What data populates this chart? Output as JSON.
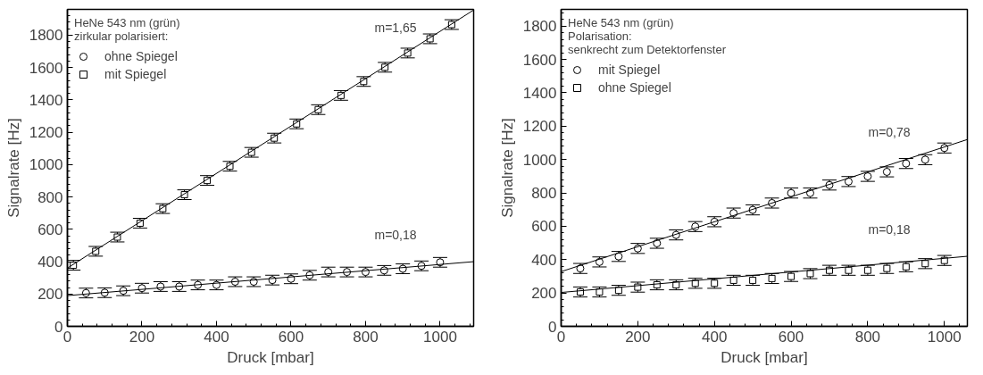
{
  "chart_data": [
    {
      "type": "scatter",
      "xlabel": "Druck [mbar]",
      "ylabel": "Signalrate [Hz]",
      "legend_title": "HeNe 543 nm (grün)\nzirkular polarisiert:",
      "legend": "top left",
      "grid": false,
      "xlim": [
        0,
        1090
      ],
      "ylim": [
        0,
        1960
      ],
      "xticks": [
        0,
        200,
        400,
        600,
        800,
        1000
      ],
      "yticks": [
        0,
        200,
        400,
        600,
        800,
        1000,
        1200,
        1400,
        1600,
        1800
      ],
      "series": [
        {
          "name": "ohne Spiegel",
          "color": "#000000",
          "marker": "circle",
          "x": [
            50,
            100,
            150,
            200,
            250,
            300,
            350,
            400,
            450,
            500,
            550,
            600,
            650,
            700,
            750,
            800,
            850,
            900,
            950,
            1000
          ],
          "values": [
            206,
            208,
            220,
            236,
            246,
            246,
            256,
            256,
            276,
            276,
            286,
            294,
            316,
            336,
            336,
            336,
            346,
            356,
            374,
            396
          ],
          "errors": [
            30,
            30,
            30,
            30,
            30,
            30,
            30,
            30,
            30,
            30,
            30,
            30,
            30,
            30,
            30,
            30,
            30,
            30,
            30,
            30
          ]
        },
        {
          "name": "mit Spiegel",
          "color": "#000000",
          "marker": "square",
          "x": [
            16,
            76,
            134,
            195,
            256,
            314,
            375,
            436,
            494,
            555,
            615,
            673,
            734,
            795,
            852,
            913,
            973,
            1031
          ],
          "values": [
            378,
            464,
            552,
            638,
            728,
            814,
            902,
            990,
            1076,
            1164,
            1252,
            1340,
            1428,
            1514,
            1602,
            1690,
            1778,
            1866
          ],
          "errors": [
            30,
            30,
            30,
            30,
            30,
            30,
            30,
            30,
            30,
            30,
            30,
            30,
            30,
            30,
            30,
            30,
            30,
            30
          ]
        },
        {
          "type": "line",
          "color": "#000000",
          "x": [
            0,
            1090
          ],
          "values": [
            360,
            1956
          ]
        },
        {
          "type": "line",
          "color": "#000000",
          "x": [
            0,
            1090
          ],
          "values": [
            190,
            400
          ]
        }
      ],
      "annotations": [
        "m=1,65",
        "m=0,18"
      ]
    },
    {
      "type": "scatter",
      "xlabel": "Druck [mbar]",
      "ylabel": "Signalrate [Hz]",
      "legend_title": "HeNe 543 nm (grün)\nPolarisation:\nsenkrecht zum Detektorfenster",
      "legend": "top left",
      "grid": false,
      "xlim": [
        0,
        1060
      ],
      "ylim": [
        0,
        1900
      ],
      "xticks": [
        0,
        200,
        400,
        600,
        800,
        1000
      ],
      "yticks": [
        0,
        200,
        400,
        600,
        800,
        1000,
        1200,
        1400,
        1600,
        1800
      ],
      "series": [
        {
          "name": "mit Spiegel",
          "color": "#000000",
          "marker": "circle",
          "x": [
            50,
            100,
            150,
            200,
            250,
            300,
            350,
            400,
            450,
            500,
            550,
            600,
            650,
            700,
            750,
            800,
            850,
            900,
            950,
            1000
          ],
          "values": [
            347,
            386,
            419,
            467,
            498,
            548,
            598,
            627,
            679,
            698,
            739,
            799,
            799,
            847,
            868,
            899,
            926,
            976,
            999,
            1069
          ],
          "errors": [
            30,
            30,
            30,
            30,
            30,
            30,
            30,
            30,
            30,
            30,
            30,
            30,
            30,
            30,
            30,
            30,
            30,
            30,
            30,
            30
          ]
        },
        {
          "name": "ohne Spiegel",
          "color": "#000000",
          "marker": "square",
          "x": [
            50,
            100,
            150,
            200,
            250,
            300,
            350,
            400,
            450,
            500,
            550,
            600,
            650,
            700,
            750,
            800,
            850,
            900,
            950,
            1000
          ],
          "values": [
            206,
            206,
            216,
            235,
            249,
            249,
            258,
            258,
            276,
            276,
            287,
            299,
            316,
            336,
            336,
            336,
            347,
            357,
            376,
            395
          ],
          "errors": [
            30,
            30,
            30,
            30,
            30,
            30,
            30,
            30,
            30,
            30,
            30,
            30,
            30,
            30,
            30,
            30,
            30,
            30,
            30,
            30
          ]
        },
        {
          "type": "line",
          "color": "#000000",
          "x": [
            0,
            1060
          ],
          "values": [
            328,
            1120
          ]
        },
        {
          "type": "line",
          "color": "#000000",
          "x": [
            0,
            1060
          ],
          "values": [
            203,
            420
          ]
        }
      ],
      "annotations": [
        "m=0,78",
        "m=0,18"
      ]
    }
  ]
}
